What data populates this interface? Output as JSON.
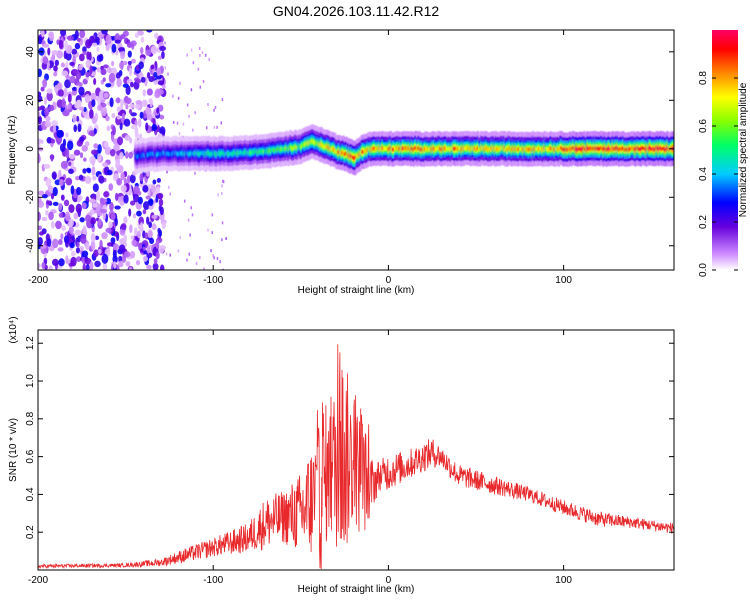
{
  "title": "GN04.2026.103.11.42.R12",
  "chart_data": [
    {
      "type": "heatmap",
      "xlabel": "Height of straight line (km)",
      "ylabel": "Frequency (Hz)",
      "xlim": [
        -200,
        163
      ],
      "ylim": [
        -50,
        49
      ],
      "xticks": [
        -200,
        -100,
        0,
        100
      ],
      "yticks": [
        -40,
        -20,
        0,
        20,
        40
      ],
      "colorbar": {
        "label": "Normalized spectral amplitude",
        "range": [
          0,
          1
        ],
        "ticks": [
          "0.0",
          "0.2",
          "0.4",
          "0.6",
          "0.8"
        ],
        "colormap": [
          "#ffffff",
          "#cc88ff",
          "#6600dd",
          "#0000ff",
          "#00ccff",
          "#00ff66",
          "#88ff00",
          "#ffff00",
          "#ff8800",
          "#ff0000",
          "#ff0066"
        ]
      },
      "features": {
        "noise_region_x": [
          -200,
          -128
        ],
        "ridge": {
          "x": [
            -145,
            -130,
            -110,
            -90,
            -70,
            -60,
            -50,
            -45,
            -40,
            -30,
            -25,
            -20,
            -15,
            -10,
            0,
            20,
            60,
            95,
            100,
            163
          ],
          "freq": [
            -3,
            -2,
            -2,
            -2,
            -1,
            0,
            1,
            3,
            2,
            -1,
            -2,
            -4,
            -1,
            0,
            0,
            0,
            0,
            0,
            0,
            0
          ],
          "amplitude": [
            0.35,
            0.4,
            0.45,
            0.5,
            0.55,
            0.6,
            0.65,
            0.7,
            0.75,
            0.8,
            0.85,
            0.9,
            0.85,
            0.8,
            0.85,
            0.85,
            0.8,
            0.8,
            0.95,
            0.95
          ]
        }
      }
    },
    {
      "type": "line",
      "xlabel": "Height of straight line (km)",
      "ylabel": "SNR (10 * v/v)",
      "y_multiplier": "(x10⁴)",
      "xlim": [
        -200,
        163
      ],
      "ylim": [
        0,
        1.27
      ],
      "xticks": [
        -200,
        -100,
        0,
        100
      ],
      "yticks": [
        0.2,
        0.4,
        0.6,
        0.8,
        1.0,
        1.2
      ],
      "color": "#e8282b",
      "envelope": {
        "x": [
          -200,
          -150,
          -130,
          -115,
          -100,
          -80,
          -70,
          -60,
          -50,
          -45,
          -40,
          -37,
          -35,
          -30,
          -25,
          -20,
          -15,
          -10,
          -5,
          0,
          10,
          20,
          25,
          30,
          40,
          60,
          80,
          100,
          120,
          140,
          163
        ],
        "mean": [
          0.02,
          0.025,
          0.04,
          0.08,
          0.12,
          0.17,
          0.25,
          0.28,
          0.3,
          0.35,
          0.4,
          0.45,
          0.5,
          0.55,
          0.6,
          0.55,
          0.5,
          0.45,
          0.5,
          0.52,
          0.55,
          0.6,
          0.62,
          0.6,
          0.5,
          0.45,
          0.4,
          0.33,
          0.27,
          0.25,
          0.22
        ],
        "spread": [
          0.01,
          0.01,
          0.02,
          0.04,
          0.05,
          0.08,
          0.14,
          0.14,
          0.22,
          0.3,
          0.35,
          0.6,
          0.3,
          0.45,
          0.55,
          0.3,
          0.35,
          0.15,
          0.08,
          0.1,
          0.08,
          0.08,
          0.08,
          0.06,
          0.06,
          0.05,
          0.04,
          0.04,
          0.04,
          0.03,
          0.03
        ]
      }
    }
  ]
}
